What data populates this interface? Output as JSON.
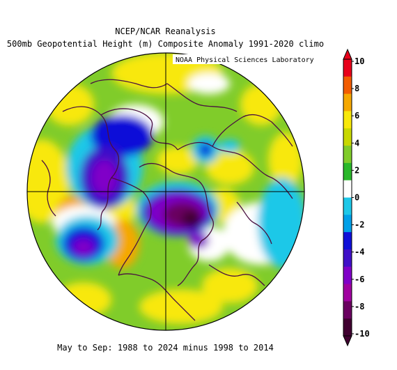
{
  "header": {
    "title": "NCEP/NCAR Reanalysis",
    "subtitle": "500mb Geopotential Height (m) Composite Anomaly 1991-2020 climo",
    "credit": "NOAA Physical Sciences Laboratory"
  },
  "footer": {
    "caption": "May to Sep: 1988 to 2024 minus 1998 to 2014"
  },
  "colorbar": {
    "labels": [
      "10",
      "8",
      "6",
      "4",
      "2",
      "0",
      "-2",
      "-4",
      "-6",
      "-8",
      "-10"
    ],
    "colors": [
      "#e8001a",
      "#f25c00",
      "#f5a800",
      "#f8e80a",
      "#c8d800",
      "#80cc2a",
      "#2ab82a",
      "#ffffff",
      "#1ec8e8",
      "#00a0e8",
      "#1010d8",
      "#4010c8",
      "#8000c8",
      "#a000a0",
      "#6a0060",
      "#400030"
    ]
  },
  "map_colors": {
    "land_outline": "#4a1040",
    "grid_line": "#000000",
    "background_anomaly_positive": "#80cc2a",
    "yellow": "#f8e80a",
    "cyan": "#1ec8e8",
    "blue": "#1010d8",
    "purple": "#8000c8",
    "dark_purple": "#400030"
  }
}
